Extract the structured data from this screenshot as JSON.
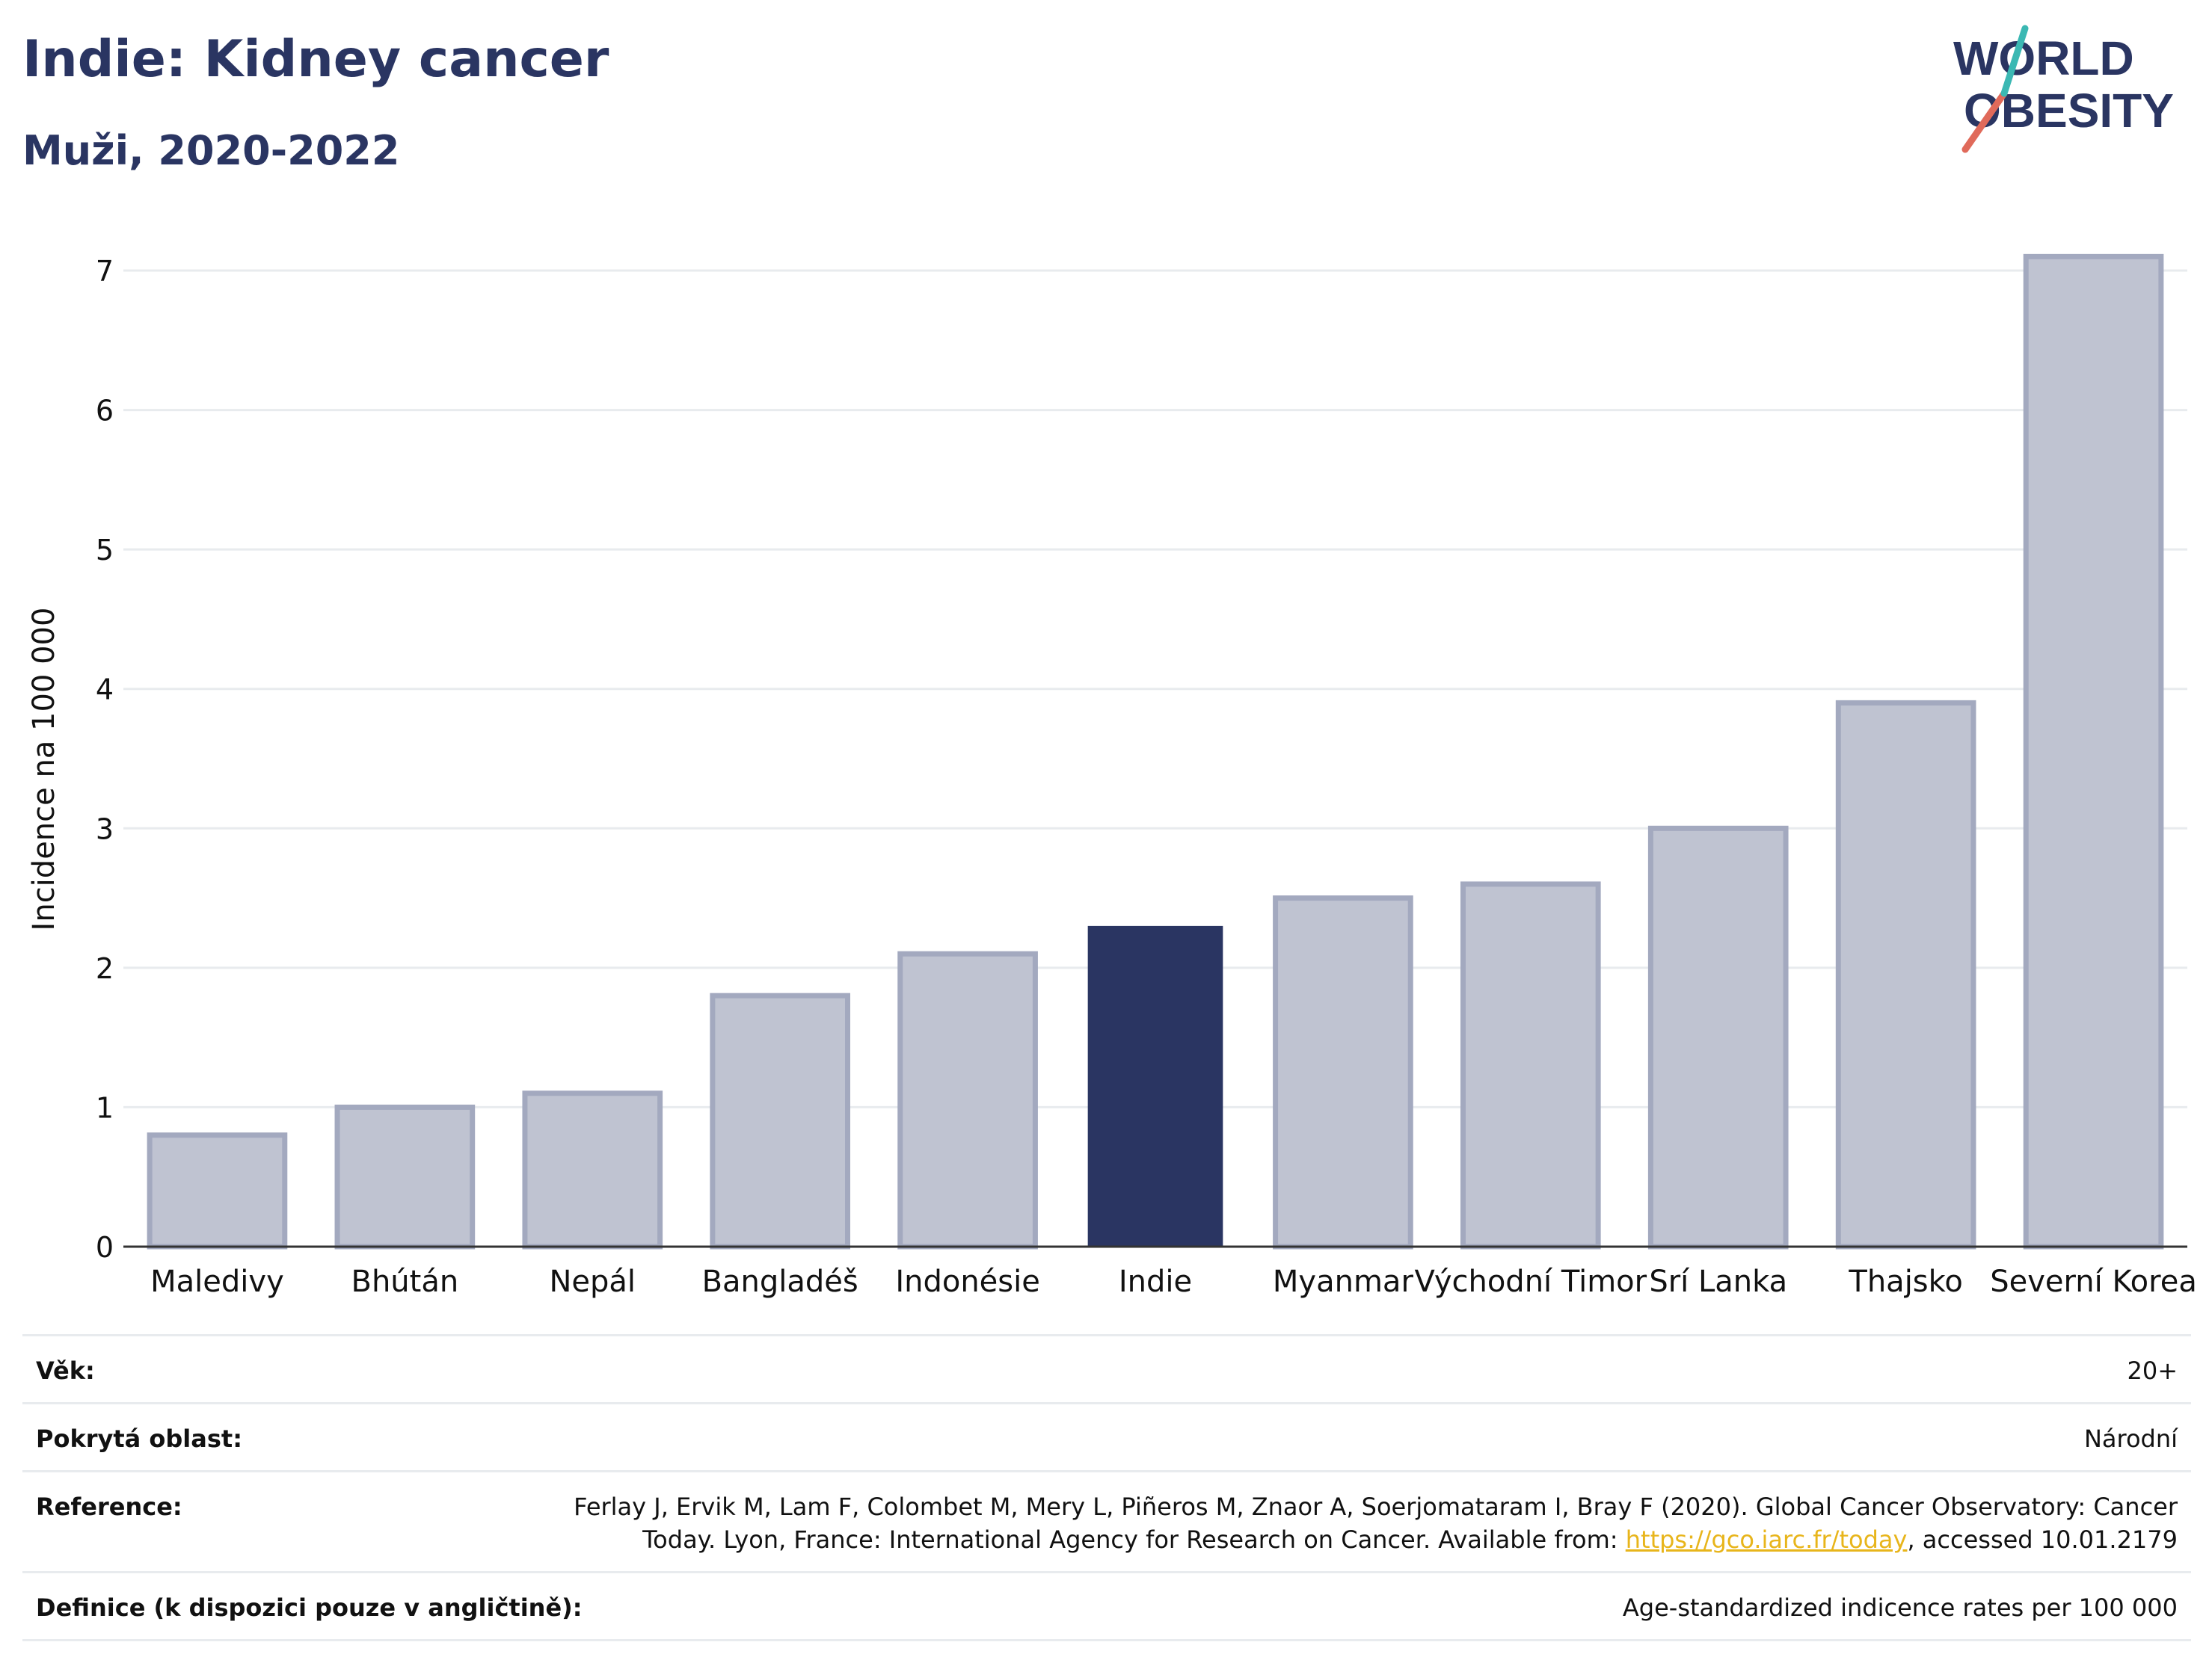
{
  "header": {
    "title": "Indie: Kidney cancer",
    "subtitle": "Muži, 2020-2022"
  },
  "logo": {
    "line1": "WORLD",
    "line2": "OBESITY",
    "colors": {
      "text": "#2a3562",
      "slash_red": "#e06a5a",
      "slash_teal": "#3bb8b3"
    }
  },
  "chart_data": {
    "type": "bar",
    "categories": [
      "Maledivy",
      "Bhútán",
      "Nepál",
      "Bangladéš",
      "Indonésie",
      "Indie",
      "Myanmar",
      "Východní Timor",
      "Srí Lanka",
      "Thajsko",
      "Severní Korea"
    ],
    "values": [
      0.8,
      1.0,
      1.1,
      1.8,
      2.1,
      2.3,
      2.5,
      2.6,
      3.0,
      3.9,
      7.1
    ],
    "highlight": "Indie",
    "xlabel": "",
    "ylabel": "Incidence na 100 000",
    "ylim": [
      0,
      7
    ],
    "yticks": [
      0,
      1,
      2,
      3,
      4,
      5,
      6,
      7
    ],
    "grid": true,
    "colors": {
      "bar": "#bfc3d1",
      "bar_border": "#a3a9bf",
      "highlight": "#2a3562",
      "grid": "#e8ebee"
    }
  },
  "meta": {
    "rows": [
      {
        "label": "Věk:",
        "value": "20+"
      },
      {
        "label": "Pokrytá oblast:",
        "value": "Národní"
      },
      {
        "label": "Reference:",
        "value_pre": "Ferlay J, Ervik M, Lam F, Colombet M, Mery L, Piñeros M, Znaor A, Soerjomataram I, Bray F (2020). Global Cancer Observatory: Cancer Today. Lyon, France: International Agency for Research on Cancer. Available from: ",
        "link": "https://gco.iarc.fr/today",
        "value_post": ", accessed 10.01.2179"
      },
      {
        "label": "Definice (k dispozici pouze v angličtině):",
        "value": "Age-standardized indicence rates per 100 000"
      }
    ]
  }
}
